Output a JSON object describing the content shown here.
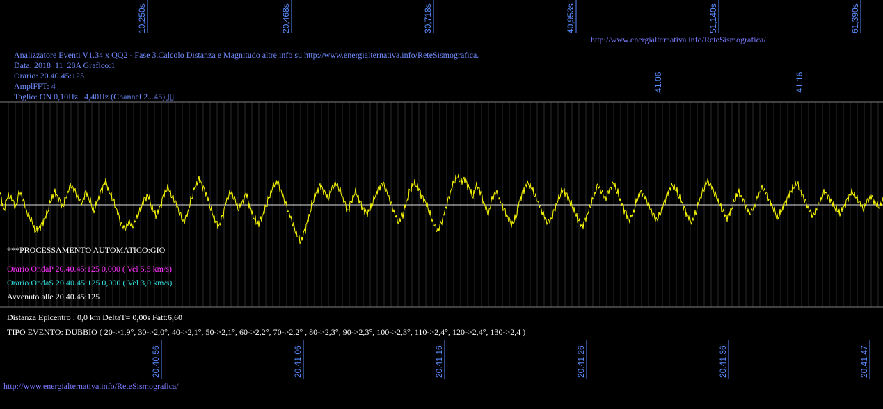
{
  "header": {
    "top_url": "http://www.energialternativa.info/ReteSismografica/",
    "info_lines": [
      "Analizzatore Eventi V1.34 x QQ2 - Fase 3.Calcolo Distanza e Magnitudo altre info su http://www.energialternativa.info/ReteSismografica.",
      "Data: 2018_11_28A Grafico:1",
      "Orario: 20.40.45:125",
      "AmplFFT: 4",
      "Taglio: ON 0,10Hz...4,40Hz      (Channel 2...45)▯▯"
    ]
  },
  "processing": {
    "title": "***PROCESSAMENTO AUTOMATICO:GIO",
    "onda_p": "Orario OndaP 20.40.45:125  0,000 ( Vel 5,5 km/s)",
    "onda_s": "Orario OndaS 20.40.45:125  0,000 ( Vel 3,0 km/s)",
    "avvenuto": "Avvenuto alle 20.40.45:125",
    "distanza": "Distanza Epicentro : 0,0 km DeltaT= 0,00s  Fatt:6,60",
    "tipo_evento": "TIPO EVENTO: DUBBIO ( 20->1,9°, 30->2,0°, 40->2,1°, 50->2,1°, 60->2,2°, 70->2,2° , 80->2,3°, 90->2,3°, 100->2,3°, 110->2,4°, 120->2,4°, 130->2,4 )"
  },
  "footer": {
    "bottom_url": "http://www.energialternativa.info/ReteSismografica/"
  },
  "colors": {
    "background": "#000000",
    "trace": "#ffff00",
    "axis_labels": "#5b8cff",
    "grid": "#555555",
    "onda_p": "#ff33ff",
    "onda_s": "#33dddd"
  },
  "chart_data": {
    "type": "line",
    "title": "",
    "xlabel": "",
    "ylabel": "",
    "top_ticks": [
      "10,250s",
      "20,468s",
      "30,718s",
      "40,953s",
      "51,140s",
      "61,390s"
    ],
    "mid_ticks": [
      ".41.06",
      ".41.16"
    ],
    "bottom_ticks": [
      "20.40.56",
      "20.41.06",
      "20.41.16",
      "20.41.26",
      "20.41.36",
      "20.41.47"
    ],
    "x_range_s": [
      0,
      63
    ],
    "y_range": [
      -1,
      1
    ],
    "grid": true,
    "series": [
      {
        "values": [
          0.25,
          -0.1,
          0.2,
          0.15,
          -0.05,
          0.3,
          0.1,
          -0.2,
          -0.35,
          -0.6,
          -0.55,
          -0.4,
          -0.2,
          0.1,
          0.3,
          0.15,
          -0.05,
          0.2,
          0.45,
          0.35,
          0.15,
          0.05,
          0.3,
          0.1,
          -0.15,
          0.1,
          0.35,
          0.55,
          0.3,
          0.1,
          -0.15,
          -0.45,
          -0.55,
          -0.4,
          -0.5,
          -0.3,
          -0.1,
          0.15,
          0.2,
          -0.1,
          -0.25,
          -0.05,
          0.25,
          0.4,
          0.2,
          0.05,
          -0.2,
          -0.4,
          -0.2,
          0.15,
          0.45,
          0.6,
          0.4,
          0.2,
          -0.1,
          -0.35,
          -0.5,
          -0.25,
          0.1,
          0.3,
          0.15,
          -0.1,
          0.05,
          0.25,
          -0.05,
          -0.3,
          -0.45,
          -0.3,
          -0.05,
          0.2,
          0.45,
          0.55,
          0.3,
          0.05,
          -0.2,
          -0.45,
          -0.7,
          -0.85,
          -0.6,
          -0.3,
          0.05,
          0.3,
          0.45,
          0.3,
          0.15,
          0.4,
          0.5,
          0.35,
          0.1,
          -0.15,
          0.1,
          0.3,
          0.1,
          -0.1,
          -0.2,
          -0.05,
          0.2,
          0.4,
          0.5,
          0.3,
          0.05,
          -0.2,
          -0.4,
          -0.25,
          0.05,
          0.35,
          0.5,
          0.4,
          0.2,
          0.05,
          -0.2,
          -0.45,
          -0.6,
          -0.4,
          -0.1,
          0.2,
          0.5,
          0.65,
          0.55,
          0.6,
          0.4,
          0.2,
          0.45,
          0.3,
          0.0,
          -0.2,
          0.15,
          0.3,
          0.1,
          -0.1,
          -0.3,
          -0.45,
          -0.3,
          0.1,
          0.35,
          0.5,
          0.4,
          0.2,
          0.0,
          -0.2,
          -0.4,
          -0.35,
          -0.1,
          0.15,
          0.35,
          0.25,
          0.05,
          -0.15,
          -0.35,
          -0.5,
          -0.3,
          -0.05,
          0.2,
          0.45,
          0.3,
          0.15,
          0.35,
          0.5,
          0.3,
          0.05,
          -0.15,
          -0.35,
          -0.2,
          0.1,
          0.3,
          0.2,
          0.0,
          -0.2,
          -0.35,
          -0.2,
          0.05,
          0.3,
          0.45,
          0.35,
          0.15,
          -0.05,
          -0.25,
          -0.4,
          -0.2,
          0.1,
          0.35,
          0.55,
          0.45,
          0.25,
          0.05,
          -0.15,
          -0.3,
          -0.15,
          0.1,
          0.3,
          0.15,
          -0.05,
          -0.2,
          -0.05,
          0.2,
          0.4,
          0.3,
          0.1,
          -0.1,
          -0.3,
          -0.15,
          0.05,
          0.25,
          0.4,
          0.5,
          0.3,
          0.1,
          -0.1,
          -0.25,
          -0.1,
          0.1,
          0.3,
          0.2,
          0.05,
          -0.1,
          -0.2,
          -0.05,
          0.15,
          0.3,
          0.2,
          0.05,
          -0.1,
          0.1,
          0.2,
          0.05,
          -0.05,
          0.1
        ]
      }
    ]
  }
}
